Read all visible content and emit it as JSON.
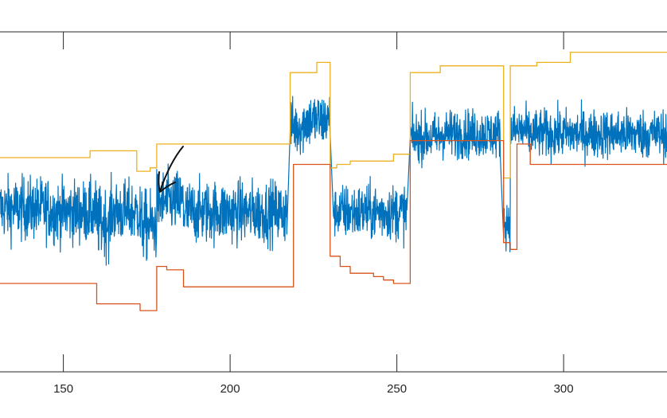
{
  "chart_data": {
    "type": "line",
    "xlim": [
      131,
      331
    ],
    "ylim": [
      0,
      1
    ],
    "grid": false,
    "legend": "none",
    "x_ticks": [
      150,
      200,
      250,
      300
    ],
    "x_tick_labels": [
      "150",
      "200",
      "250",
      "300"
    ],
    "series": [
      {
        "role": "signal",
        "color": "#0072BD",
        "segments": [
          {
            "x": [
              131,
              146
            ],
            "center": 0.48,
            "noise": 0.09
          },
          {
            "x": [
              146,
              160
            ],
            "center": 0.47,
            "noise": 0.09
          },
          {
            "x": [
              160,
              164
            ],
            "center": 0.44,
            "noise": 0.1
          },
          {
            "x": [
              164,
              173
            ],
            "center": 0.47,
            "noise": 0.09
          },
          {
            "x": [
              173,
              178
            ],
            "center": 0.43,
            "noise": 0.1
          },
          {
            "x": [
              178,
              186
            ],
            "center": 0.5,
            "noise": 0.09
          },
          {
            "x": [
              186,
              217
            ],
            "center": 0.47,
            "noise": 0.09
          },
          {
            "x": [
              218,
              222
            ],
            "center": 0.72,
            "noise": 0.08
          },
          {
            "x": [
              222,
              230
            ],
            "center": 0.74,
            "noise": 0.08
          },
          {
            "x": [
              231,
              233
            ],
            "center": 0.47,
            "noise": 0.07
          },
          {
            "x": [
              233,
              253
            ],
            "center": 0.47,
            "noise": 0.08
          },
          {
            "x": [
              254,
              263
            ],
            "center": 0.69,
            "noise": 0.07
          },
          {
            "x": [
              263,
              281
            ],
            "center": 0.7,
            "noise": 0.07
          },
          {
            "x": [
              282,
              284
            ],
            "center": 0.44,
            "noise": 0.07
          },
          {
            "x": [
              284,
              289
            ],
            "center": 0.71,
            "noise": 0.07
          },
          {
            "x": [
              289,
              331
            ],
            "center": 0.7,
            "noise": 0.07
          }
        ]
      },
      {
        "role": "upper-bound",
        "color": "#EDB120",
        "steps": [
          [
            131,
            0.63
          ],
          [
            158,
            0.65
          ],
          [
            172,
            0.59
          ],
          [
            176,
            0.6
          ],
          [
            178,
            0.67
          ],
          [
            218,
            0.88
          ],
          [
            226,
            0.91
          ],
          [
            230,
            0.6
          ],
          [
            232,
            0.61
          ],
          [
            236,
            0.62
          ],
          [
            249,
            0.64
          ],
          [
            254,
            0.88
          ],
          [
            263,
            0.9
          ],
          [
            282,
            0.57
          ],
          [
            284,
            0.9
          ],
          [
            292,
            0.91
          ],
          [
            302,
            0.94
          ],
          [
            331,
            0.94
          ]
        ]
      },
      {
        "role": "lower-bound",
        "color": "#D95319",
        "steps": [
          [
            131,
            0.26
          ],
          [
            160,
            0.2
          ],
          [
            173,
            0.18
          ],
          [
            178,
            0.31
          ],
          [
            181,
            0.3
          ],
          [
            186,
            0.25
          ],
          [
            219,
            0.61
          ],
          [
            230,
            0.34
          ],
          [
            233,
            0.31
          ],
          [
            236,
            0.29
          ],
          [
            243,
            0.28
          ],
          [
            246,
            0.27
          ],
          [
            249,
            0.26
          ],
          [
            254,
            0.68
          ],
          [
            282,
            0.38
          ],
          [
            284,
            0.36
          ],
          [
            286,
            0.67
          ],
          [
            290,
            0.61
          ],
          [
            331,
            0.61
          ]
        ]
      }
    ],
    "annotations": [
      {
        "type": "hand-drawn-arrow",
        "points_to_x": 178
      }
    ]
  }
}
